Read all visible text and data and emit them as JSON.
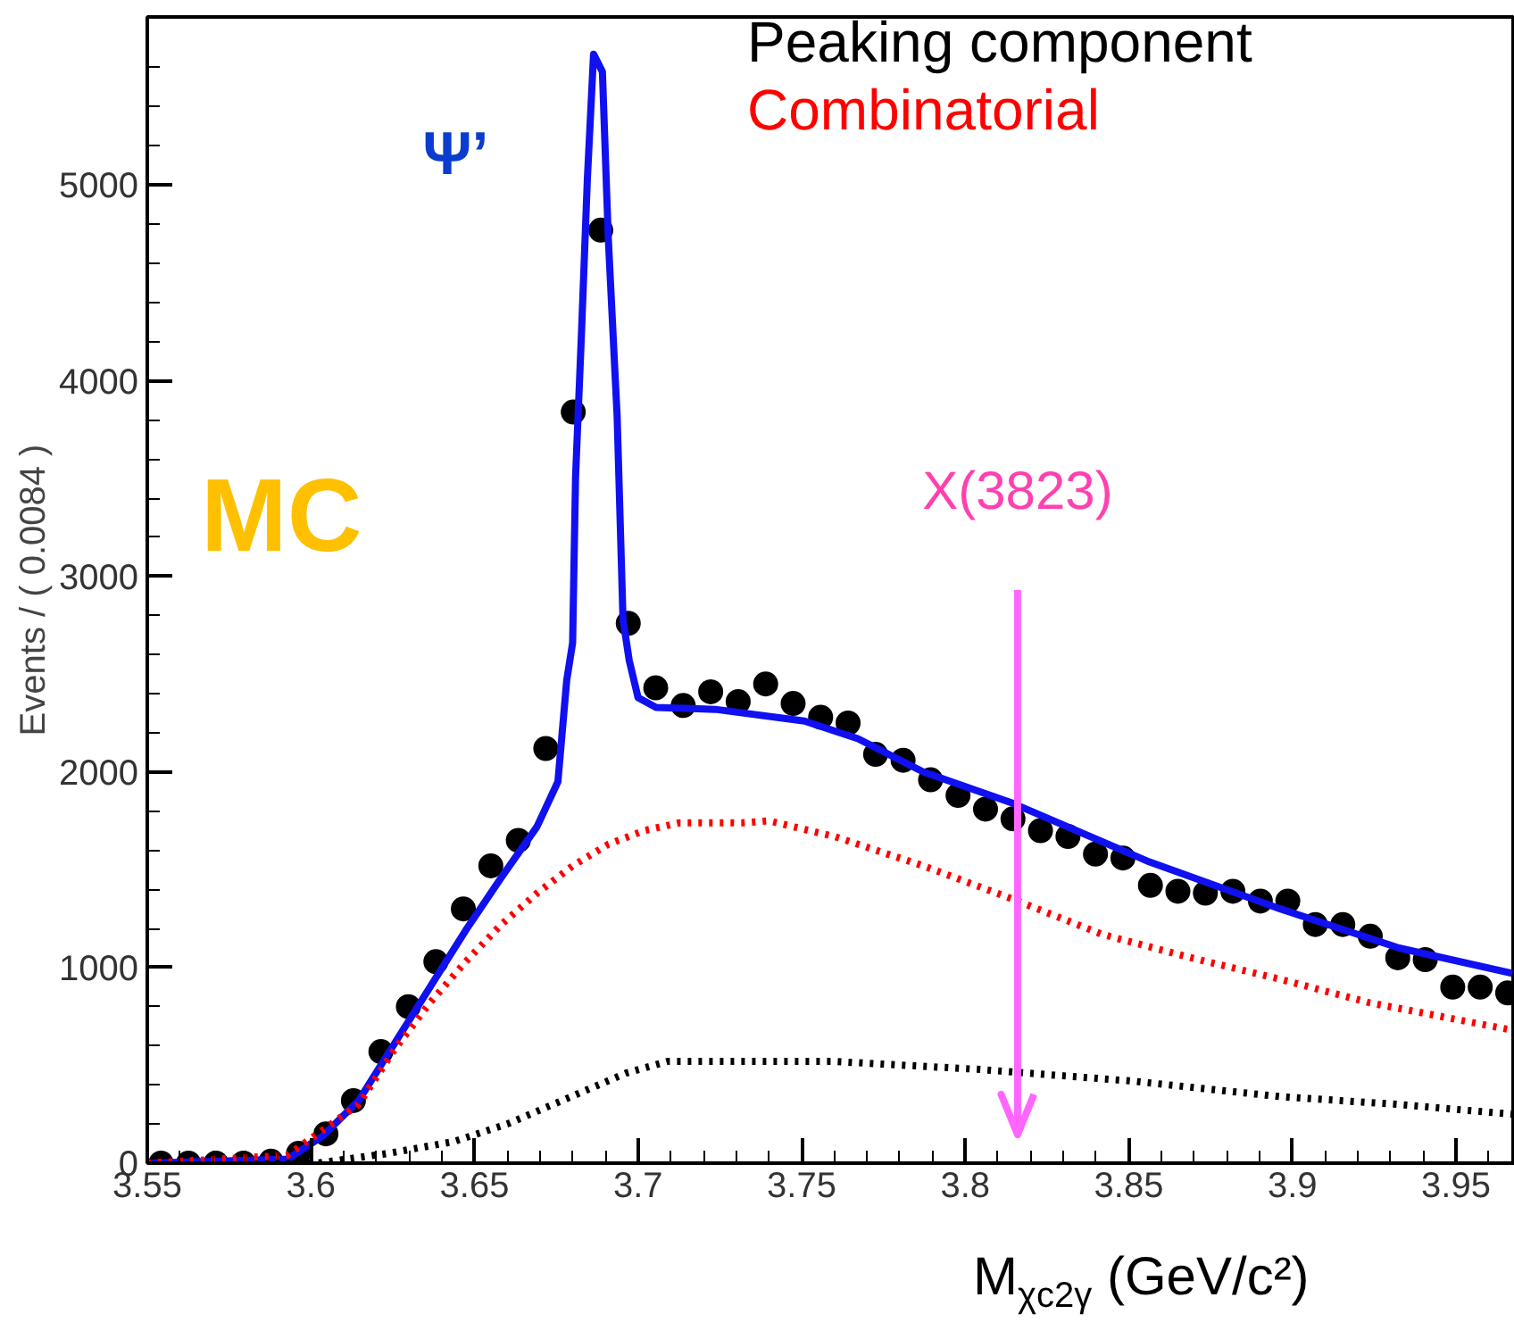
{
  "chart_data": {
    "type": "line",
    "xlabel": "M$_{χc2γ}$ (GeV/c²)",
    "ylabel": "Events / ( 0.0084 )",
    "xlim": [
      3.55,
      3.968
    ],
    "ylim": [
      0,
      5860
    ],
    "xticks": [
      3.55,
      {
        "value": 3.56,
        "label": null
      },
      {
        "value": 3.57,
        "label": null
      },
      {
        "value": 3.58,
        "label": null
      },
      {
        "value": 3.59,
        "label": null
      },
      3.6,
      {
        "value": 3.61,
        "label": null
      },
      {
        "value": 3.62,
        "label": null
      },
      {
        "value": 3.63,
        "label": null
      },
      {
        "value": 3.64,
        "label": null
      },
      3.65,
      {
        "value": 3.66,
        "label": null
      },
      {
        "value": 3.67,
        "label": null
      },
      {
        "value": 3.68,
        "label": null
      },
      {
        "value": 3.69,
        "label": null
      },
      3.7,
      {
        "value": 3.71,
        "label": null
      },
      {
        "value": 3.72,
        "label": null
      },
      {
        "value": 3.73,
        "label": null
      },
      {
        "value": 3.74,
        "label": null
      },
      3.75,
      {
        "value": 3.76,
        "label": null
      },
      {
        "value": 3.77,
        "label": null
      },
      {
        "value": 3.78,
        "label": null
      },
      {
        "value": 3.79,
        "label": null
      },
      3.8,
      {
        "value": 3.81,
        "label": null
      },
      {
        "value": 3.82,
        "label": null
      },
      {
        "value": 3.83,
        "label": null
      },
      {
        "value": 3.84,
        "label": null
      },
      3.85,
      {
        "value": 3.86,
        "label": null
      },
      {
        "value": 3.87,
        "label": null
      },
      {
        "value": 3.88,
        "label": null
      },
      {
        "value": 3.89,
        "label": null
      },
      3.9,
      {
        "value": 3.91,
        "label": null
      },
      {
        "value": 3.92,
        "label": null
      },
      {
        "value": 3.93,
        "label": null
      },
      {
        "value": 3.94,
        "label": null
      },
      3.95,
      {
        "value": 3.96,
        "label": null
      }
    ],
    "yticks": [
      0,
      {
        "value": 200,
        "label": null
      },
      {
        "value": 400,
        "label": null
      },
      {
        "value": 600,
        "label": null
      },
      {
        "value": 800,
        "label": null
      },
      1000,
      {
        "value": 1200,
        "label": null
      },
      {
        "value": 1400,
        "label": null
      },
      {
        "value": 1600,
        "label": null
      },
      {
        "value": 1800,
        "label": null
      },
      2000,
      {
        "value": 2200,
        "label": null
      },
      {
        "value": 2400,
        "label": null
      },
      {
        "value": 2600,
        "label": null
      },
      {
        "value": 2800,
        "label": null
      },
      3000,
      {
        "value": 3200,
        "label": null
      },
      {
        "value": 3400,
        "label": null
      },
      {
        "value": 3600,
        "label": null
      },
      {
        "value": 3800,
        "label": null
      },
      4000,
      {
        "value": 4200,
        "label": null
      },
      {
        "value": 4400,
        "label": null
      },
      {
        "value": 4600,
        "label": null
      },
      {
        "value": 4800,
        "label": null
      },
      5000,
      {
        "value": 5200,
        "label": null
      },
      {
        "value": 5400,
        "label": null
      },
      {
        "value": 5600,
        "label": null
      }
    ],
    "grid": false,
    "legend": "top right",
    "annotations": [
      {
        "text": "Ψ’",
        "x": 3.686,
        "y": 5670
      },
      "MC"
    ],
    "ref_lines": [
      {
        "axis": "x",
        "value": 3.816,
        "label": "X(3823)",
        "color": "#ff66ff"
      }
    ],
    "series": [
      {
        "type": "scatter",
        "marker": "circle",
        "color": "#000000",
        "x": [
          3.5542,
          3.5626,
          3.571,
          3.5794,
          3.5878,
          3.5962,
          3.6046,
          3.613,
          3.6214,
          3.6298,
          3.6382,
          3.6466,
          3.655,
          3.6634,
          3.6718,
          3.6802,
          3.6886,
          3.697,
          3.7054,
          3.7138,
          3.7222,
          3.7306,
          3.739,
          3.7474,
          3.7558,
          3.7642,
          3.7726,
          3.781,
          3.7894,
          3.7978,
          3.8062,
          3.8146,
          3.823,
          3.8314,
          3.8398,
          3.8482,
          3.8566,
          3.865,
          3.8734,
          3.8818,
          3.8902,
          3.8986,
          3.907,
          3.9154,
          3.9238,
          3.9322,
          3.9406,
          3.949,
          3.9574,
          3.9658
        ],
        "values": [
          0,
          0,
          0,
          0,
          10,
          50,
          150,
          320,
          570,
          800,
          1030,
          1300,
          1520,
          1650,
          2120,
          3840,
          4770,
          2760,
          2430,
          2340,
          2410,
          2360,
          2450,
          2350,
          2280,
          2250,
          2090,
          2060,
          1960,
          1880,
          1810,
          1760,
          1700,
          1670,
          1580,
          1560,
          1420,
          1390,
          1380,
          1390,
          1340,
          1340,
          1220,
          1220,
          1160,
          1050,
          1040,
          900,
          900,
          870
        ]
      },
      {
        "line_style": "solid",
        "color": "#1010f0",
        "x": [
          3.55,
          3.5928,
          3.6037,
          3.6146,
          3.6255,
          3.6364,
          3.6473,
          3.6582,
          3.6691,
          3.6755,
          3.6782,
          3.68,
          3.6809,
          3.6827,
          3.6845,
          3.6864,
          3.6891,
          3.6909,
          3.6936,
          3.6954,
          3.6973,
          3.7,
          3.7055,
          3.7236,
          3.7509,
          3.7672,
          3.7872,
          3.8145,
          3.8563,
          3.8963,
          3.9326,
          3.9672
        ],
        "values": [
          0,
          20,
          140,
          320,
          610,
          900,
          1190,
          1460,
          1720,
          1950,
          2470,
          2660,
          3510,
          4240,
          5030,
          5670,
          5580,
          4730,
          3820,
          2780,
          2570,
          2380,
          2330,
          2320,
          2260,
          2170,
          2000,
          1840,
          1540,
          1300,
          1100,
          970
        ]
      },
      {
        "name": "Peaking component",
        "line_style": "dotted",
        "color": "#000000",
        "x": [
          3.55,
          3.6019,
          3.6237,
          3.6436,
          3.66,
          3.6782,
          3.6963,
          3.709,
          3.7318,
          3.76,
          3.8036,
          3.8508,
          3.8963,
          3.9326,
          3.9672
        ],
        "values": [
          0,
          0,
          50,
          110,
          200,
          330,
          460,
          520,
          520,
          520,
          480,
          420,
          340,
          300,
          250
        ]
      },
      {
        "name": "Combinatorial",
        "line_style": "dotted",
        "color": "#ff0000",
        "x": [
          3.55,
          3.5928,
          3.6037,
          3.6146,
          3.6255,
          3.6364,
          3.6473,
          3.6582,
          3.6691,
          3.68,
          3.6909,
          3.7018,
          3.7127,
          3.7318,
          3.74,
          3.76,
          3.7872,
          3.8145,
          3.8418,
          3.869,
          3.8963,
          3.9236,
          3.9672
        ],
        "values": [
          0,
          40,
          170,
          300,
          580,
          820,
          1030,
          1220,
          1380,
          1520,
          1630,
          1700,
          1740,
          1740,
          1750,
          1670,
          1520,
          1350,
          1170,
          1050,
          940,
          820,
          680
        ]
      }
    ]
  }
}
